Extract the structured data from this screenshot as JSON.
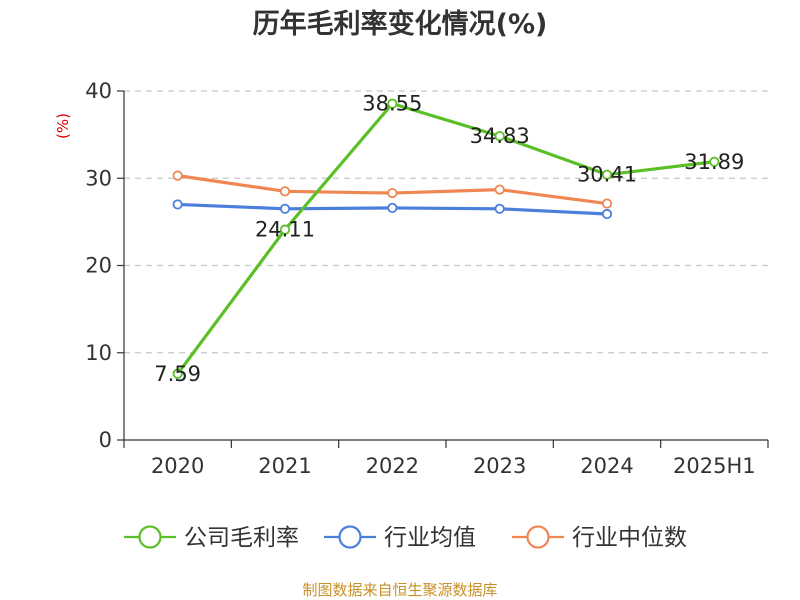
{
  "chart_data": {
    "type": "line",
    "title": "历年毛利率变化情况(%)",
    "ylabel": "(%)",
    "xlabel": "",
    "categories": [
      "2020",
      "2021",
      "2022",
      "2023",
      "2024",
      "2025H1"
    ],
    "ylim": [
      0,
      40
    ],
    "yticks": [
      0,
      10,
      20,
      30,
      40
    ],
    "grid": true,
    "legend_position": "bottom",
    "series": [
      {
        "name": "公司毛利率",
        "color": "#5ac026",
        "values": [
          7.59,
          24.11,
          38.55,
          34.83,
          30.41,
          31.89
        ],
        "labels": [
          "7.59",
          "24.11",
          "38.55",
          "34.83",
          "30.41",
          "31.89"
        ]
      },
      {
        "name": "行业均值",
        "color": "#4a7fdc",
        "values": [
          27.0,
          26.5,
          26.6,
          26.5,
          25.9,
          null
        ]
      },
      {
        "name": "行业中位数",
        "color": "#f08752",
        "values": [
          30.3,
          28.5,
          28.3,
          28.7,
          27.1,
          null
        ]
      }
    ]
  },
  "source": "制图数据来自恒生聚源数据库"
}
